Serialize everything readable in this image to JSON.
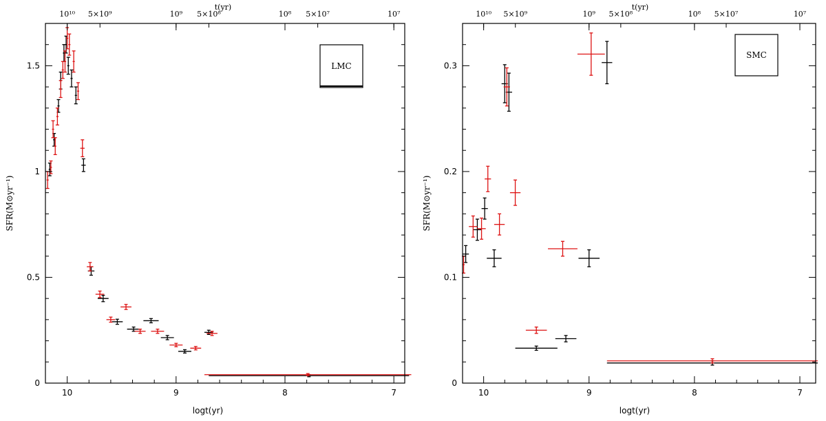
{
  "chart_data": [
    {
      "type": "scatter",
      "panel": "LMC",
      "label": "LMC",
      "xlabel": "logt(yr)",
      "ylabel": "SFR(M⊙yr⁻¹)",
      "top_label": "t(yr)",
      "x_reversed": true,
      "xlim": [
        10.2,
        6.9
      ],
      "ylim": [
        0,
        1.7
      ],
      "x_ticks": [
        10,
        9,
        8,
        7
      ],
      "y_ticks": [
        {
          "value": 0,
          "label": "0"
        },
        {
          "value": 0.5,
          "label": "0.5"
        },
        {
          "value": 1.0,
          "label": "1"
        },
        {
          "value": 1.5,
          "label": "1.5"
        }
      ],
      "top_ticks": [
        {
          "logt": 10.0,
          "label": "10¹⁰"
        },
        {
          "logt": 9.699,
          "label": "5×10⁹"
        },
        {
          "logt": 9.0,
          "label": "10⁹"
        },
        {
          "logt": 8.699,
          "label": "5×10⁸"
        },
        {
          "logt": 8.0,
          "label": "10⁸"
        },
        {
          "logt": 7.699,
          "label": "5×10⁷"
        },
        {
          "logt": 7.0,
          "label": "10⁷"
        }
      ],
      "series": [
        {
          "color": "#000000",
          "points": [
            {
              "x": 10.16,
              "y": 1.01,
              "xerr": 0.01,
              "yerr": 0.03
            },
            {
              "x": 10.12,
              "y": 1.15,
              "xerr": 0.01,
              "yerr": 0.03
            },
            {
              "x": 10.08,
              "y": 1.31,
              "xerr": 0.01,
              "yerr": 0.03
            },
            {
              "x": 10.06,
              "y": 1.43,
              "xerr": 0.01,
              "yerr": 0.04
            },
            {
              "x": 10.03,
              "y": 1.56,
              "xerr": 0.01,
              "yerr": 0.04
            },
            {
              "x": 10.01,
              "y": 1.6,
              "xerr": 0.01,
              "yerr": 0.04
            },
            {
              "x": 9.99,
              "y": 1.5,
              "xerr": 0.01,
              "yerr": 0.04
            },
            {
              "x": 9.96,
              "y": 1.44,
              "xerr": 0.01,
              "yerr": 0.04
            },
            {
              "x": 9.92,
              "y": 1.36,
              "xerr": 0.01,
              "yerr": 0.04
            },
            {
              "x": 9.85,
              "y": 1.03,
              "xerr": 0.02,
              "yerr": 0.03
            },
            {
              "x": 9.78,
              "y": 0.53,
              "xerr": 0.03,
              "yerr": 0.02
            },
            {
              "x": 9.67,
              "y": 0.4,
              "xerr": 0.05,
              "yerr": 0.015
            },
            {
              "x": 9.54,
              "y": 0.29,
              "xerr": 0.05,
              "yerr": 0.012
            },
            {
              "x": 9.39,
              "y": 0.255,
              "xerr": 0.06,
              "yerr": 0.01
            },
            {
              "x": 9.23,
              "y": 0.295,
              "xerr": 0.07,
              "yerr": 0.01
            },
            {
              "x": 9.08,
              "y": 0.215,
              "xerr": 0.06,
              "yerr": 0.01
            },
            {
              "x": 8.92,
              "y": 0.15,
              "xerr": 0.06,
              "yerr": 0.008
            },
            {
              "x": 8.7,
              "y": 0.24,
              "xerr": 0.04,
              "yerr": 0.01
            },
            {
              "x": 7.78,
              "y": 0.035,
              "xerr": 0.92,
              "yerr": 0.005
            }
          ]
        },
        {
          "color": "#dd1111",
          "points": [
            {
              "x": 10.18,
              "y": 0.96,
              "xerr": 0.01,
              "yerr": 0.04
            },
            {
              "x": 10.15,
              "y": 1.02,
              "xerr": 0.01,
              "yerr": 0.03
            },
            {
              "x": 10.13,
              "y": 1.2,
              "xerr": 0.01,
              "yerr": 0.04
            },
            {
              "x": 10.11,
              "y": 1.12,
              "xerr": 0.01,
              "yerr": 0.04
            },
            {
              "x": 10.09,
              "y": 1.26,
              "xerr": 0.01,
              "yerr": 0.04
            },
            {
              "x": 10.06,
              "y": 1.39,
              "xerr": 0.01,
              "yerr": 0.04
            },
            {
              "x": 10.04,
              "y": 1.48,
              "xerr": 0.01,
              "yerr": 0.04
            },
            {
              "x": 10.02,
              "y": 1.52,
              "xerr": 0.01,
              "yerr": 0.05
            },
            {
              "x": 10.0,
              "y": 1.63,
              "xerr": 0.01,
              "yerr": 0.05
            },
            {
              "x": 9.98,
              "y": 1.6,
              "xerr": 0.01,
              "yerr": 0.05
            },
            {
              "x": 9.94,
              "y": 1.52,
              "xerr": 0.01,
              "yerr": 0.05
            },
            {
              "x": 9.9,
              "y": 1.38,
              "xerr": 0.01,
              "yerr": 0.04
            },
            {
              "x": 9.86,
              "y": 1.11,
              "xerr": 0.02,
              "yerr": 0.04
            },
            {
              "x": 9.79,
              "y": 0.55,
              "xerr": 0.03,
              "yerr": 0.02
            },
            {
              "x": 9.7,
              "y": 0.42,
              "xerr": 0.04,
              "yerr": 0.015
            },
            {
              "x": 9.6,
              "y": 0.3,
              "xerr": 0.04,
              "yerr": 0.012
            },
            {
              "x": 9.46,
              "y": 0.36,
              "xerr": 0.05,
              "yerr": 0.012
            },
            {
              "x": 9.33,
              "y": 0.245,
              "xerr": 0.05,
              "yerr": 0.01
            },
            {
              "x": 9.17,
              "y": 0.245,
              "xerr": 0.06,
              "yerr": 0.01
            },
            {
              "x": 9.0,
              "y": 0.18,
              "xerr": 0.06,
              "yerr": 0.008
            },
            {
              "x": 8.82,
              "y": 0.165,
              "xerr": 0.05,
              "yerr": 0.008
            },
            {
              "x": 8.67,
              "y": 0.235,
              "xerr": 0.05,
              "yerr": 0.01
            },
            {
              "x": 7.79,
              "y": 0.04,
              "xerr": 0.95,
              "yerr": 0.005
            }
          ]
        }
      ]
    },
    {
      "type": "scatter",
      "panel": "SMC",
      "label": "SMC",
      "xlabel": "logt(yr)",
      "ylabel": "SFR(M⊙yr⁻¹)",
      "top_label": "t(yr)",
      "x_reversed": true,
      "xlim": [
        10.2,
        6.85
      ],
      "ylim": [
        0,
        0.34
      ],
      "x_ticks": [
        10,
        9,
        8,
        7
      ],
      "y_ticks": [
        {
          "value": 0,
          "label": "0"
        },
        {
          "value": 0.1,
          "label": "0.1"
        },
        {
          "value": 0.2,
          "label": "0.2"
        },
        {
          "value": 0.3,
          "label": "0.3"
        }
      ],
      "top_ticks": [
        {
          "logt": 10.0,
          "label": "10¹⁰"
        },
        {
          "logt": 9.699,
          "label": "5×10⁹"
        },
        {
          "logt": 9.0,
          "label": "10⁹"
        },
        {
          "logt": 8.699,
          "label": "5×10⁸"
        },
        {
          "logt": 8.0,
          "label": "10⁸"
        },
        {
          "logt": 7.699,
          "label": "5×10⁷"
        },
        {
          "logt": 7.0,
          "label": "10⁷"
        }
      ],
      "series": [
        {
          "color": "#000000",
          "points": [
            {
              "x": 10.17,
              "y": 0.122,
              "xerr": 0.03,
              "yerr": 0.008
            },
            {
              "x": 10.06,
              "y": 0.145,
              "xerr": 0.04,
              "yerr": 0.01
            },
            {
              "x": 9.99,
              "y": 0.165,
              "xerr": 0.03,
              "yerr": 0.01
            },
            {
              "x": 9.9,
              "y": 0.118,
              "xerr": 0.07,
              "yerr": 0.008
            },
            {
              "x": 9.8,
              "y": 0.283,
              "xerr": 0.03,
              "yerr": 0.018
            },
            {
              "x": 9.76,
              "y": 0.275,
              "xerr": 0.03,
              "yerr": 0.018
            },
            {
              "x": 9.5,
              "y": 0.033,
              "xerr": 0.2,
              "yerr": 0.002
            },
            {
              "x": 9.22,
              "y": 0.042,
              "xerr": 0.1,
              "yerr": 0.003
            },
            {
              "x": 9.0,
              "y": 0.118,
              "xerr": 0.1,
              "yerr": 0.008
            },
            {
              "x": 8.83,
              "y": 0.303,
              "xerr": 0.05,
              "yerr": 0.02
            },
            {
              "x": 7.83,
              "y": 0.019,
              "xerr": 1.0,
              "yerr": 0.002
            }
          ]
        },
        {
          "color": "#dd1111",
          "points": [
            {
              "x": 10.19,
              "y": 0.112,
              "xerr": 0.01,
              "yerr": 0.008
            },
            {
              "x": 10.1,
              "y": 0.148,
              "xerr": 0.04,
              "yerr": 0.01
            },
            {
              "x": 10.02,
              "y": 0.146,
              "xerr": 0.04,
              "yerr": 0.01
            },
            {
              "x": 9.96,
              "y": 0.193,
              "xerr": 0.03,
              "yerr": 0.012
            },
            {
              "x": 9.85,
              "y": 0.15,
              "xerr": 0.05,
              "yerr": 0.01
            },
            {
              "x": 9.78,
              "y": 0.28,
              "xerr": 0.03,
              "yerr": 0.018
            },
            {
              "x": 9.7,
              "y": 0.18,
              "xerr": 0.05,
              "yerr": 0.012
            },
            {
              "x": 9.5,
              "y": 0.05,
              "xerr": 0.1,
              "yerr": 0.003
            },
            {
              "x": 9.25,
              "y": 0.127,
              "xerr": 0.14,
              "yerr": 0.007
            },
            {
              "x": 8.98,
              "y": 0.311,
              "xerr": 0.13,
              "yerr": 0.02
            },
            {
              "x": 7.83,
              "y": 0.021,
              "xerr": 1.0,
              "yerr": 0.002
            }
          ]
        }
      ]
    }
  ]
}
